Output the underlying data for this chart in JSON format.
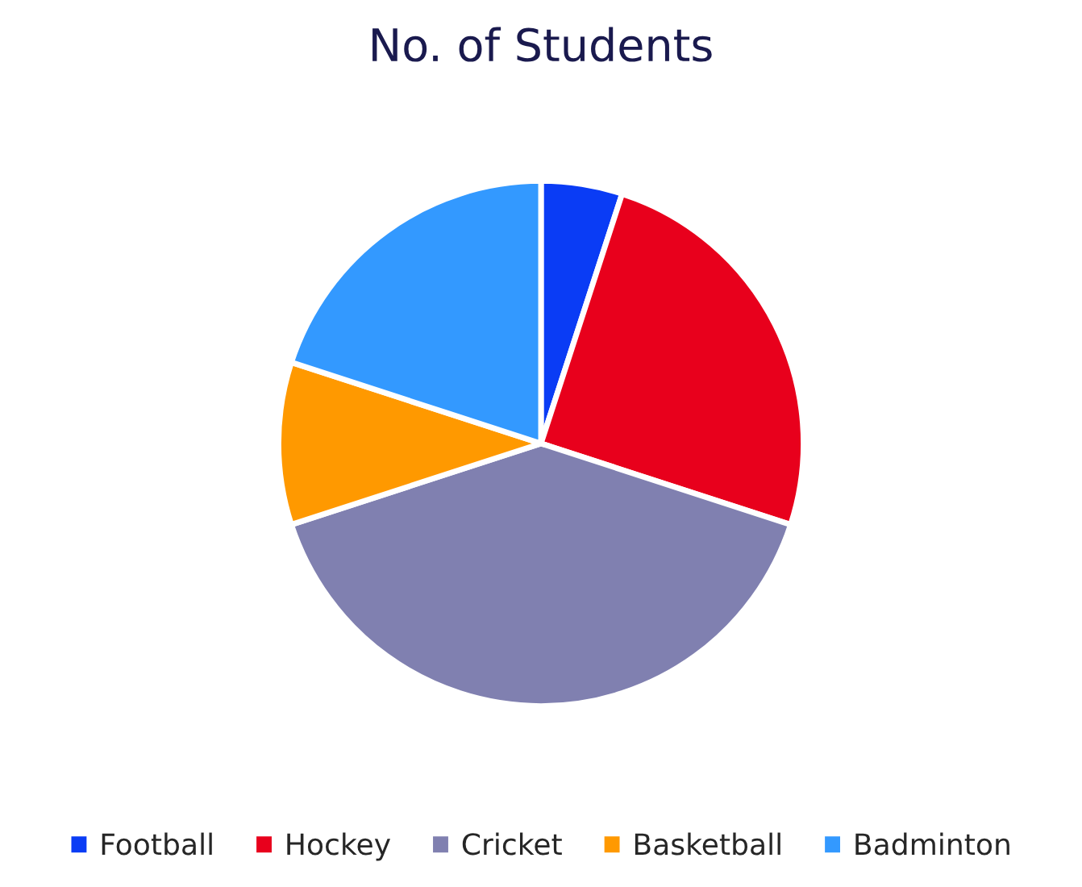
{
  "chart_data": {
    "type": "pie",
    "title": "No. of Students",
    "categories": [
      "Football",
      "Hockey",
      "Cricket",
      "Basketball",
      "Badminton"
    ],
    "values": [
      5,
      25,
      40,
      10,
      20
    ],
    "colors": [
      "#0a3cf5",
      "#e8001c",
      "#8080b0",
      "#ff9900",
      "#3399ff"
    ],
    "legend": "bottom"
  }
}
